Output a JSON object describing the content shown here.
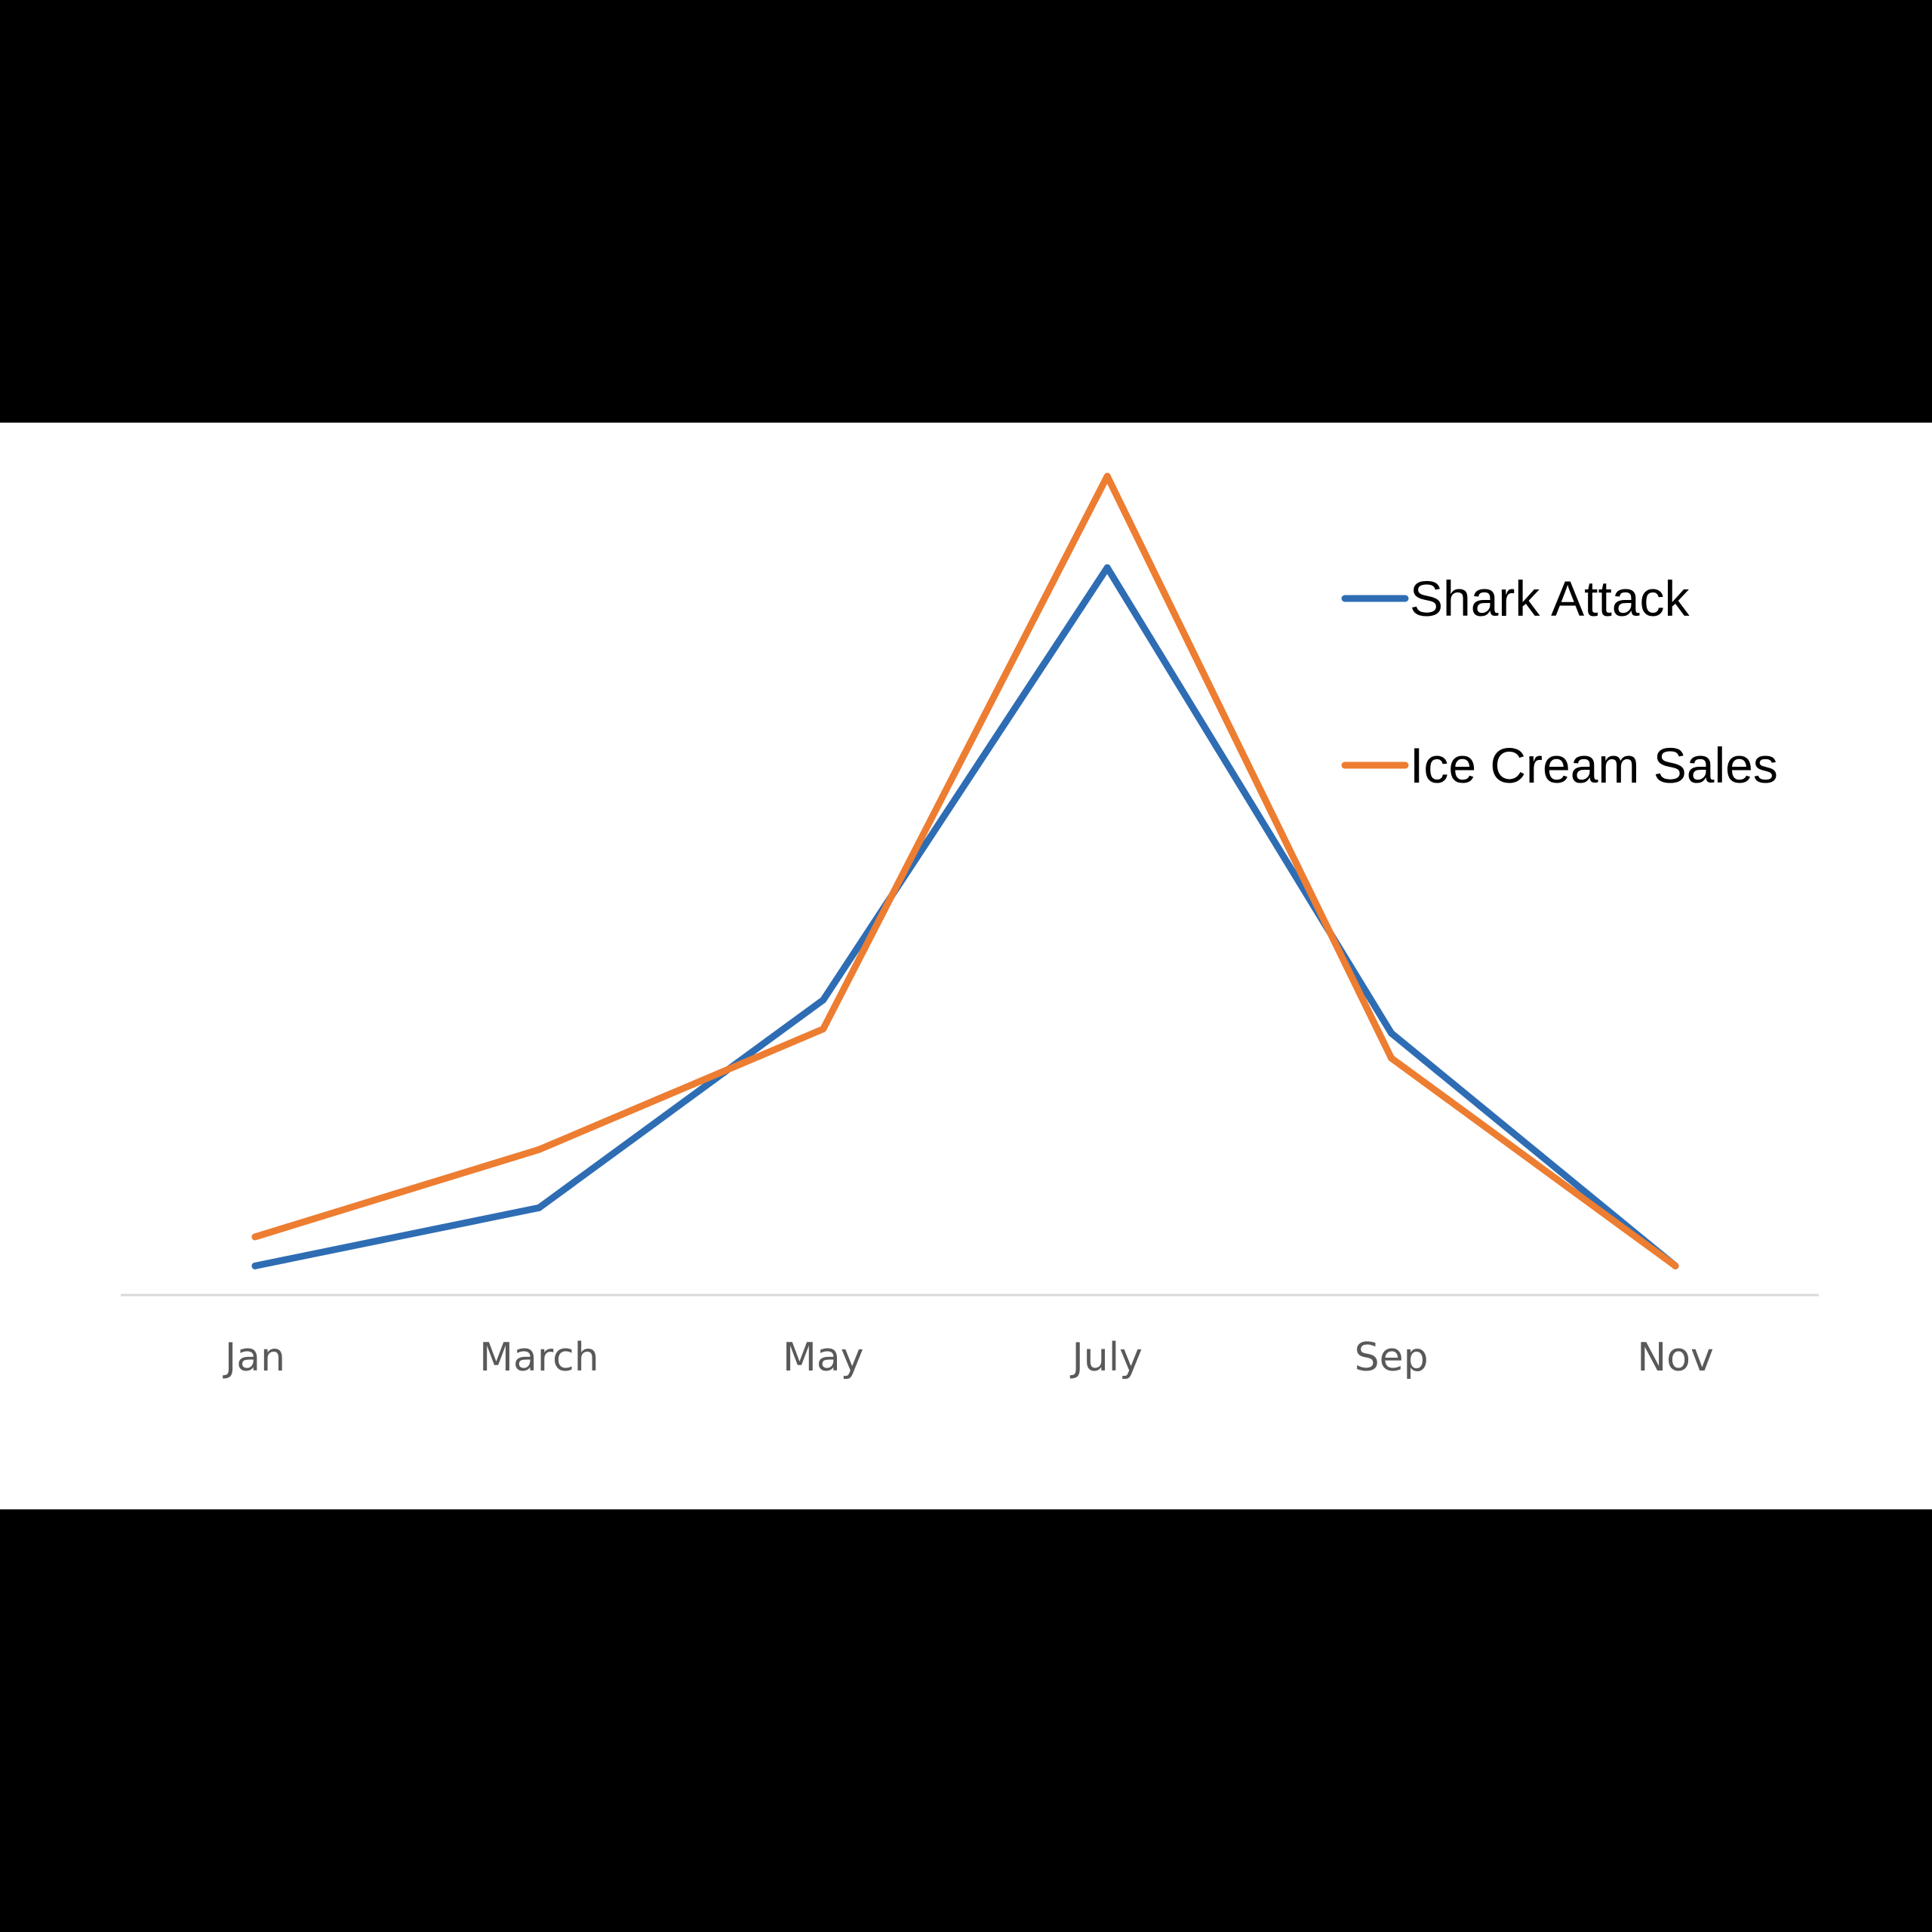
{
  "chart_data": {
    "type": "line",
    "title": "",
    "xlabel": "",
    "ylabel": "",
    "categories": [
      "Jan",
      "March",
      "May",
      "July",
      "Sep",
      "Nov"
    ],
    "series": [
      {
        "name": "Shark Attack",
        "color": "#2E6DB4",
        "values": [
          0,
          7,
          32,
          84,
          28,
          0
        ]
      },
      {
        "name": "Ice Cream Sales",
        "color": "#ED7D31",
        "values": [
          3.5,
          14,
          28.5,
          95,
          25,
          0
        ]
      }
    ],
    "ylim": [
      -3.5,
      96
    ],
    "grid": false,
    "y_axis_visible": false,
    "legend": "top-right",
    "baseline_color": "#D9D9D9"
  }
}
